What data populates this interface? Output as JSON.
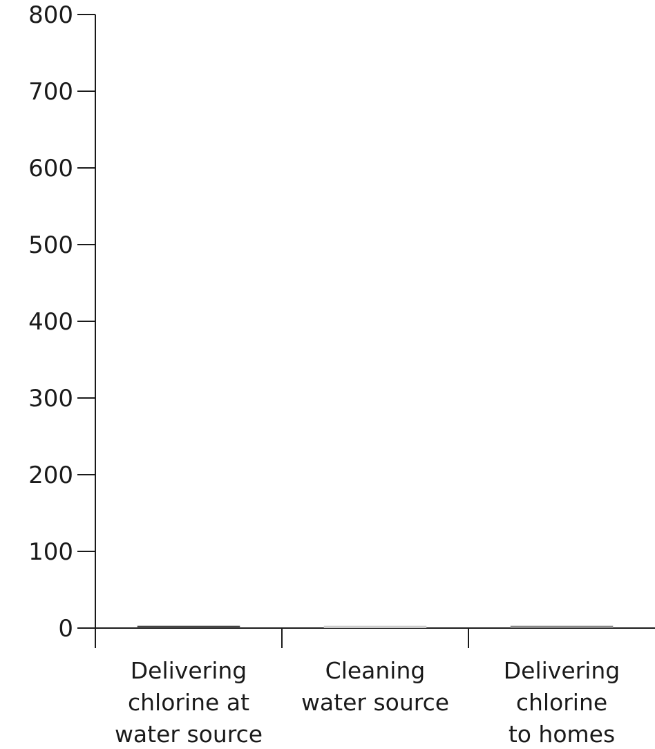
{
  "chart_data": {
    "type": "bar",
    "title": "",
    "xlabel": "",
    "ylabel": "",
    "ylim": [
      0,
      800
    ],
    "yticks": [
      0,
      100,
      200,
      300,
      400,
      500,
      600,
      700,
      800
    ],
    "ytick_labels": [
      "0",
      "100",
      "200",
      "300",
      "400",
      "500",
      "600",
      "700",
      "800"
    ],
    "categories": [
      [
        "Delivering",
        "chlorine at",
        "water source"
      ],
      [
        "Cleaning",
        "water source"
      ],
      [
        "Delivering",
        "chlorine",
        "to homes"
      ]
    ],
    "values": [
      3,
      3,
      3
    ],
    "colors": [
      "#444444",
      "#cccccc",
      "#888888"
    ],
    "grid": false,
    "legend": "none"
  }
}
